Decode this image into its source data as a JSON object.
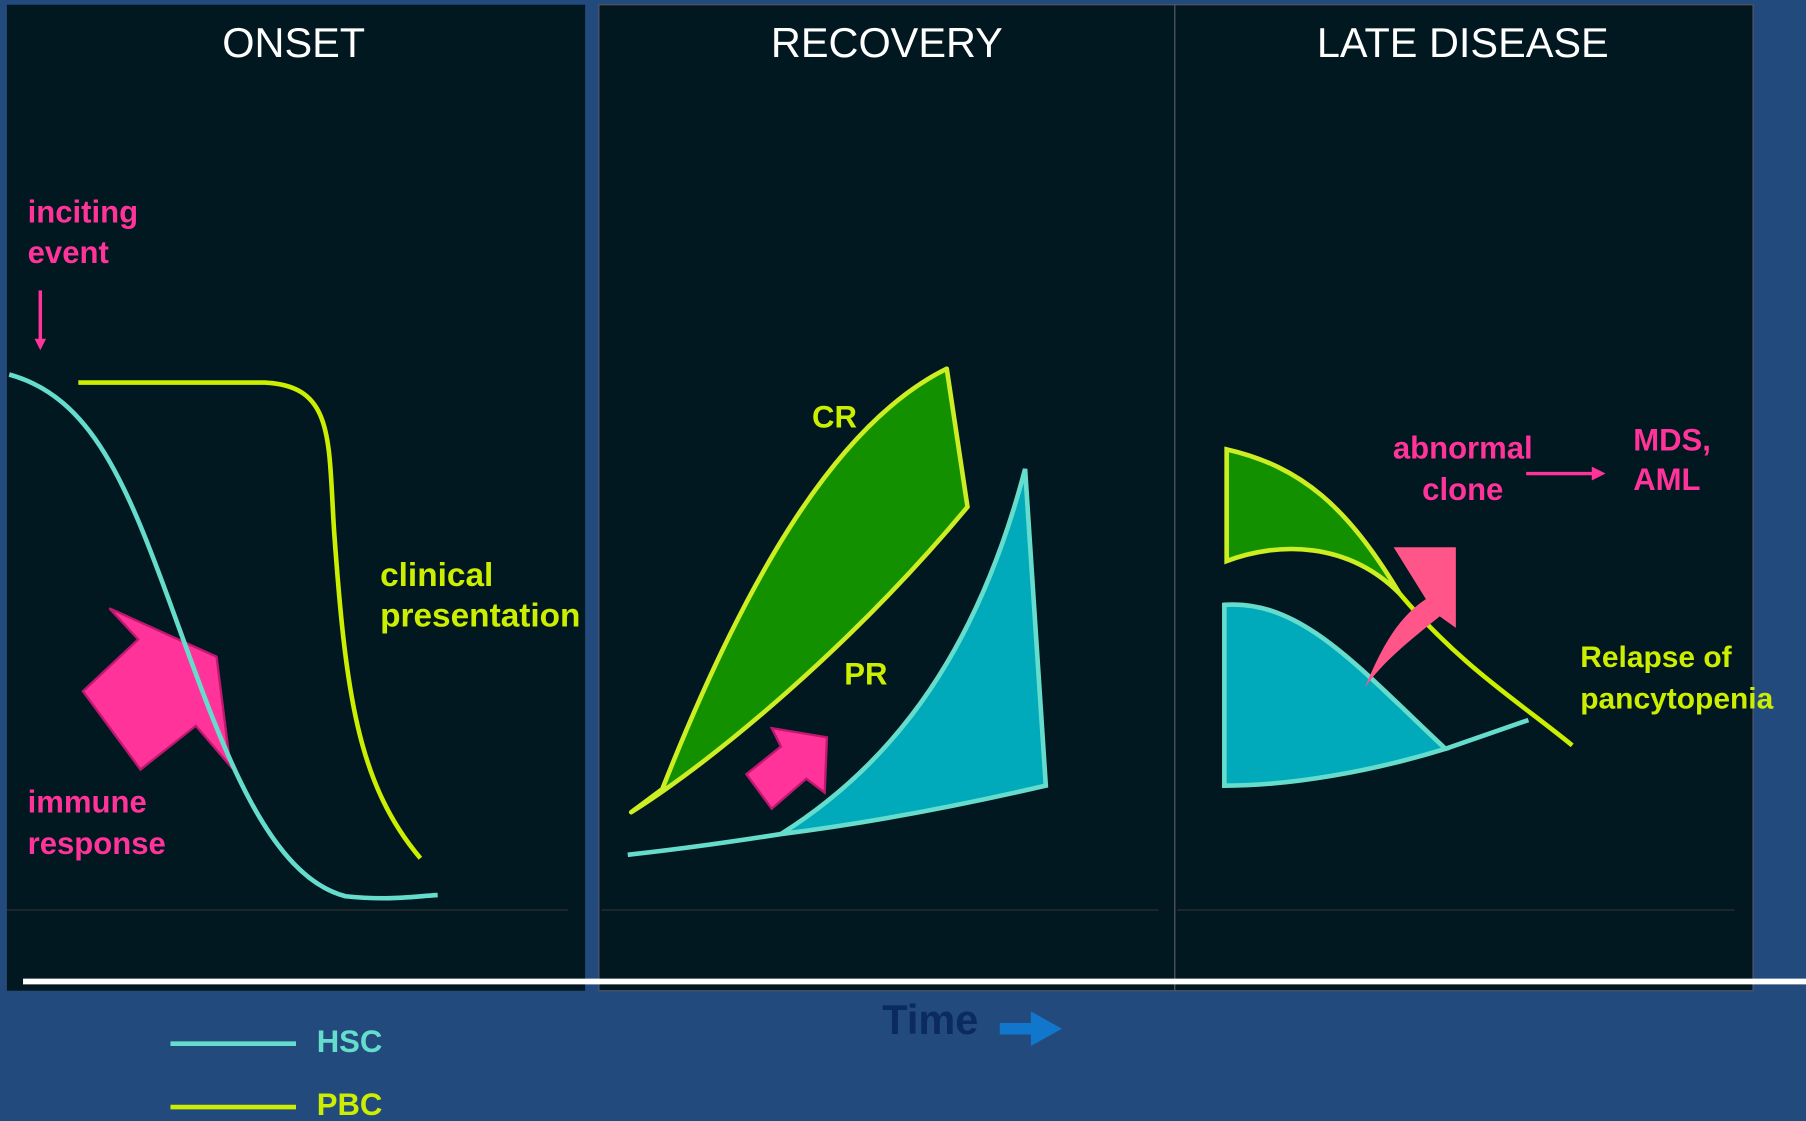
{
  "panels": [
    {
      "title": "ONSET",
      "labels": [
        {
          "lines": [
            "inciting",
            "event"
          ]
        },
        {
          "lines": [
            "clinical",
            "presentation"
          ]
        },
        {
          "lines": [
            "immune",
            "response"
          ]
        }
      ]
    },
    {
      "title": "RECOVERY",
      "labels": [
        {
          "lines": [
            "CR"
          ]
        },
        {
          "lines": [
            "PR"
          ]
        }
      ]
    },
    {
      "title": "LATE DISEASE",
      "labels": [
        {
          "lines": [
            "abnormal",
            "clone"
          ]
        },
        {
          "lines": [
            "MDS,",
            "AML"
          ]
        },
        {
          "lines": [
            "Relapse of",
            "pancytopenia"
          ]
        }
      ]
    }
  ],
  "axis_label": "Time",
  "legend": [
    {
      "label": "HSC"
    },
    {
      "label": "PBC"
    }
  ]
}
